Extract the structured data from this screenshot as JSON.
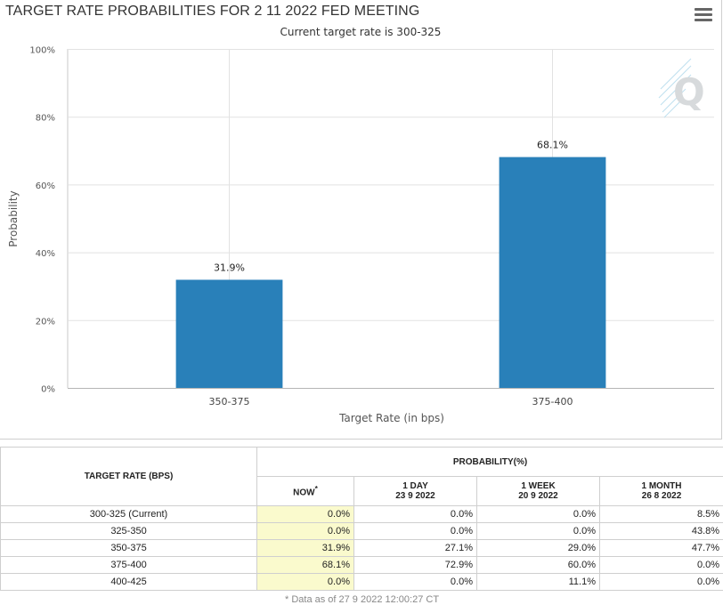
{
  "menu": {
    "icon": "hamburger-menu-icon"
  },
  "chart_data": {
    "type": "bar",
    "title": "TARGET RATE PROBABILITIES FOR 2 11 2022 FED MEETING",
    "subtitle": "Current target rate is 300-325",
    "categories": [
      "350-375",
      "375-400"
    ],
    "values": [
      31.9,
      68.1
    ],
    "data_labels": [
      "31.9%",
      "68.1%"
    ],
    "xlabel": "Target Rate (in bps)",
    "ylabel": "Probability",
    "ylim": [
      0,
      100
    ],
    "yticks": [
      0,
      20,
      40,
      60,
      80,
      100
    ],
    "ytick_labels": [
      "0%",
      "20%",
      "40%",
      "60%",
      "80%",
      "100%"
    ],
    "grid": true,
    "bar_color": "#2980b9",
    "watermark": "Q"
  },
  "table": {
    "header_rate": "TARGET RATE (BPS)",
    "header_prob": "PROBABILITY(%)",
    "columns": [
      {
        "label": "NOW",
        "sup": "*",
        "date": ""
      },
      {
        "label": "1 DAY",
        "date": "23 9 2022"
      },
      {
        "label": "1 WEEK",
        "date": "20 9 2022"
      },
      {
        "label": "1 MONTH",
        "date": "26 8 2022"
      }
    ],
    "rows": [
      {
        "rate": "300-325 (Current)",
        "values": [
          "0.0%",
          "0.0%",
          "0.0%",
          "8.5%"
        ]
      },
      {
        "rate": "325-350",
        "values": [
          "0.0%",
          "0.0%",
          "0.0%",
          "43.8%"
        ]
      },
      {
        "rate": "350-375",
        "values": [
          "31.9%",
          "27.1%",
          "29.0%",
          "47.7%"
        ]
      },
      {
        "rate": "375-400",
        "values": [
          "68.1%",
          "72.9%",
          "60.0%",
          "0.0%"
        ]
      },
      {
        "rate": "400-425",
        "values": [
          "0.0%",
          "0.0%",
          "11.1%",
          "0.0%"
        ]
      }
    ],
    "note": "* Data as of 27 9 2022 12:00:27 CT"
  }
}
